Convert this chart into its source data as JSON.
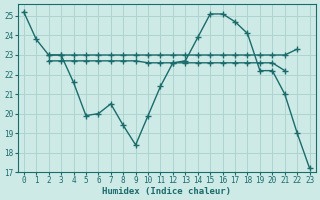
{
  "xlabel": "Humidex (Indice chaleur)",
  "xlim": [
    -0.5,
    23.5
  ],
  "ylim": [
    17,
    25.6
  ],
  "yticks": [
    17,
    18,
    19,
    20,
    21,
    22,
    23,
    24,
    25
  ],
  "xticks": [
    0,
    1,
    2,
    3,
    4,
    5,
    6,
    7,
    8,
    9,
    10,
    11,
    12,
    13,
    14,
    15,
    16,
    17,
    18,
    19,
    20,
    21,
    22,
    23
  ],
  "bg_color": "#ceeae6",
  "grid_color": "#aed4cf",
  "line_color": "#1a6b6b",
  "line1": {
    "x": [
      0,
      1,
      2,
      3,
      4,
      5,
      6,
      7,
      8,
      9,
      10,
      11,
      12,
      13,
      14,
      15,
      16,
      17,
      18,
      19,
      20,
      21,
      22,
      23
    ],
    "y": [
      25.2,
      23.8,
      23.0,
      23.0,
      21.6,
      19.9,
      20.0,
      20.5,
      19.4,
      18.4,
      19.9,
      21.4,
      22.6,
      22.7,
      23.9,
      25.1,
      25.1,
      24.7,
      24.1,
      22.2,
      22.2,
      21.0,
      19.0,
      17.2
    ]
  },
  "line2": {
    "x": [
      2,
      3,
      4,
      5,
      6,
      7,
      8,
      9,
      10,
      11,
      12,
      13,
      14,
      15,
      16,
      17,
      18,
      19,
      20,
      21,
      22
    ],
    "y": [
      23.0,
      23.0,
      23.0,
      23.0,
      23.0,
      23.0,
      23.0,
      23.0,
      23.0,
      23.0,
      23.0,
      23.0,
      23.0,
      23.0,
      23.0,
      23.0,
      23.0,
      23.0,
      23.0,
      23.0,
      23.3
    ]
  },
  "line3": {
    "x": [
      2,
      3,
      4,
      5,
      6,
      7,
      8,
      9,
      10,
      11,
      12,
      13,
      14,
      15,
      16,
      17,
      18,
      19,
      20,
      21
    ],
    "y": [
      22.7,
      22.7,
      22.7,
      22.7,
      22.7,
      22.7,
      22.7,
      22.7,
      22.6,
      22.6,
      22.6,
      22.6,
      22.6,
      22.6,
      22.6,
      22.6,
      22.6,
      22.6,
      22.6,
      22.2
    ]
  },
  "marker": "+",
  "markersize": 4,
  "linewidth": 1.0
}
